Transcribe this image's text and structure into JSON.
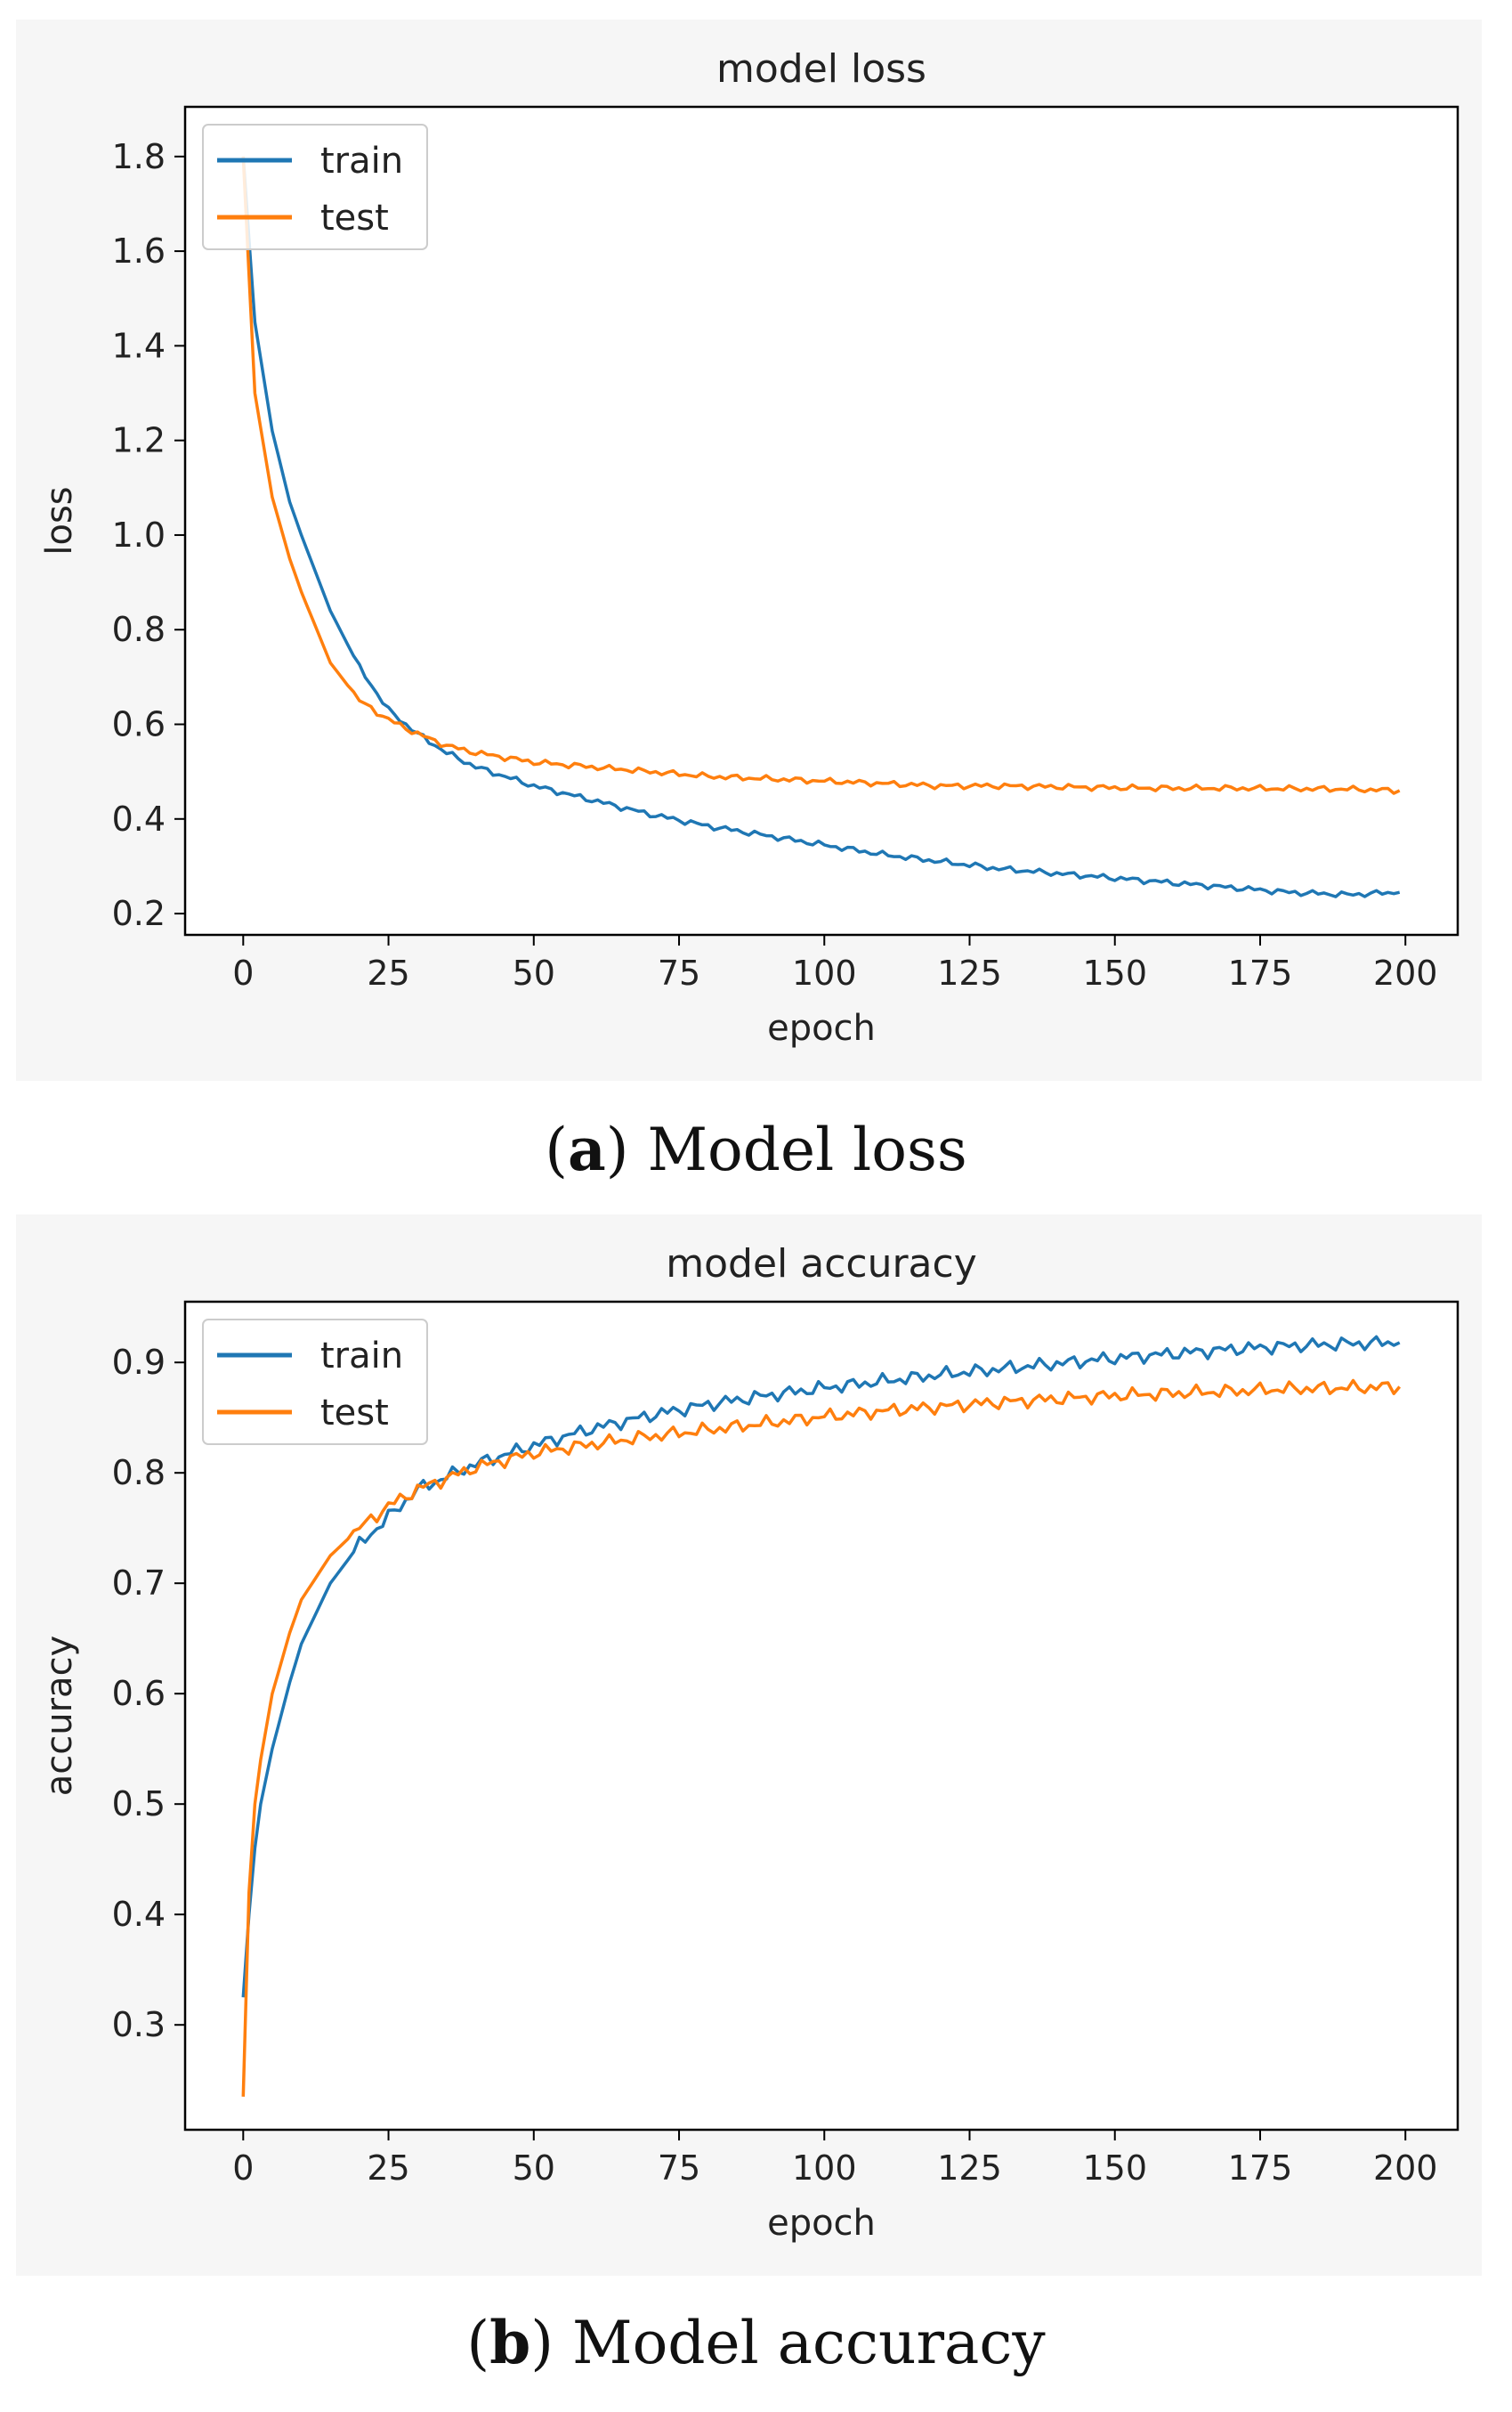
{
  "chart_data": [
    {
      "type": "line",
      "title": "model loss",
      "xlabel": "epoch",
      "ylabel": "loss",
      "xlim": [
        -10,
        209
      ],
      "ylim": [
        0.155,
        1.905
      ],
      "xticks": [
        0,
        25,
        50,
        75,
        100,
        125,
        150,
        175,
        200
      ],
      "yticks": [
        0.2,
        0.4,
        0.6,
        0.8,
        1.0,
        1.2,
        1.4,
        1.6,
        1.8
      ],
      "ytick_labels": [
        "0.2",
        "0.4",
        "0.6",
        "0.8",
        "1.0",
        "1.2",
        "1.4",
        "1.6",
        "1.8"
      ],
      "legend": "upper-left",
      "series": [
        {
          "name": "train",
          "color": "#1f77b4",
          "x": [
            0,
            2,
            5,
            8,
            10,
            15,
            20,
            25,
            30,
            35,
            40,
            50,
            60,
            70,
            80,
            90,
            100,
            110,
            120,
            130,
            140,
            150,
            160,
            170,
            180,
            190,
            199
          ],
          "y": [
            1.8,
            1.45,
            1.22,
            1.07,
            1.0,
            0.84,
            0.72,
            0.63,
            0.58,
            0.54,
            0.51,
            0.47,
            0.44,
            0.41,
            0.385,
            0.365,
            0.345,
            0.325,
            0.31,
            0.295,
            0.285,
            0.275,
            0.265,
            0.255,
            0.245,
            0.24,
            0.245
          ]
        },
        {
          "name": "test",
          "color": "#ff7f0e",
          "x": [
            0,
            2,
            5,
            8,
            10,
            15,
            20,
            25,
            30,
            35,
            40,
            45,
            50,
            60,
            70,
            80,
            90,
            100,
            110,
            120,
            130,
            140,
            150,
            160,
            170,
            180,
            190,
            199
          ],
          "y": [
            1.8,
            1.3,
            1.08,
            0.95,
            0.88,
            0.73,
            0.65,
            0.61,
            0.58,
            0.555,
            0.54,
            0.53,
            0.52,
            0.51,
            0.5,
            0.49,
            0.485,
            0.48,
            0.475,
            0.47,
            0.47,
            0.468,
            0.466,
            0.465,
            0.465,
            0.464,
            0.463,
            0.46
          ]
        }
      ]
    },
    {
      "type": "line",
      "title": "model accuracy",
      "xlabel": "epoch",
      "ylabel": "accuracy",
      "xlim": [
        -10,
        209
      ],
      "ylim": [
        0.205,
        0.955
      ],
      "xticks": [
        0,
        25,
        50,
        75,
        100,
        125,
        150,
        175,
        200
      ],
      "yticks": [
        0.3,
        0.4,
        0.5,
        0.6,
        0.7,
        0.8,
        0.9
      ],
      "ytick_labels": [
        "0.3",
        "0.4",
        "0.5",
        "0.6",
        "0.7",
        "0.8",
        "0.9"
      ],
      "legend": "upper-left",
      "series": [
        {
          "name": "train",
          "color": "#1f77b4",
          "x": [
            0,
            1,
            2,
            3,
            5,
            8,
            10,
            15,
            20,
            25,
            30,
            40,
            50,
            60,
            70,
            80,
            90,
            100,
            110,
            120,
            130,
            140,
            150,
            160,
            170,
            180,
            190,
            199
          ],
          "y": [
            0.325,
            0.4,
            0.46,
            0.5,
            0.55,
            0.61,
            0.645,
            0.7,
            0.735,
            0.76,
            0.785,
            0.808,
            0.825,
            0.84,
            0.852,
            0.862,
            0.87,
            0.877,
            0.883,
            0.889,
            0.894,
            0.899,
            0.904,
            0.908,
            0.912,
            0.915,
            0.917,
            0.918
          ]
        },
        {
          "name": "test",
          "color": "#ff7f0e",
          "x": [
            0,
            1,
            2,
            3,
            5,
            8,
            10,
            15,
            20,
            25,
            30,
            40,
            50,
            60,
            70,
            80,
            90,
            100,
            110,
            120,
            130,
            140,
            150,
            160,
            170,
            180,
            190,
            199
          ],
          "y": [
            0.235,
            0.42,
            0.5,
            0.54,
            0.6,
            0.655,
            0.685,
            0.725,
            0.75,
            0.77,
            0.785,
            0.805,
            0.818,
            0.826,
            0.833,
            0.839,
            0.845,
            0.851,
            0.856,
            0.86,
            0.864,
            0.867,
            0.87,
            0.872,
            0.874,
            0.876,
            0.877,
            0.878
          ]
        }
      ]
    }
  ],
  "captions": [
    {
      "label": "a",
      "text": "Model loss"
    },
    {
      "label": "b",
      "text": "Model accuracy"
    }
  ]
}
